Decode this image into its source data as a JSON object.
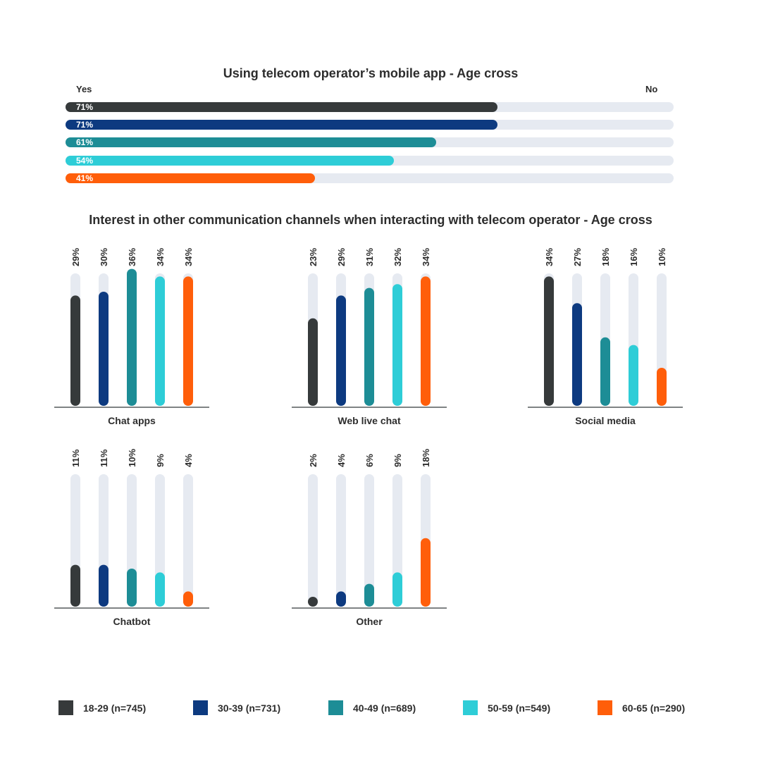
{
  "colors": [
    "#363a3b",
    "#0d3a80",
    "#1d8d96",
    "#2ecdd7",
    "#ff5e0a"
  ],
  "track_color": "#e6eaf1",
  "chart_data": [
    {
      "type": "bar",
      "orientation": "horizontal",
      "title": "Using telecom operator’s mobile app - Age cross",
      "left_label": "Yes",
      "right_label": "No",
      "categories": [
        "18-29 (n=745)",
        "30-39 (n=731)",
        "40-49 (n=689)",
        "50-59 (n=549)",
        "60-65 (n=290)"
      ],
      "values": [
        71,
        71,
        61,
        54,
        41
      ],
      "labels": [
        "71%",
        "71%",
        "61%",
        "54%",
        "41%"
      ],
      "xlim": [
        0,
        100
      ]
    },
    {
      "type": "bar",
      "title": "Interest in other communication channels when interacting with telecom operator - Age cross",
      "ylim": [
        0,
        100
      ],
      "series": [
        {
          "name": "18-29 (n=745)",
          "values": [
            29,
            23,
            34,
            11,
            2
          ]
        },
        {
          "name": "30-39 (n=731)",
          "values": [
            30,
            29,
            27,
            11,
            4
          ]
        },
        {
          "name": "40-49 (n=689)",
          "values": [
            36,
            31,
            18,
            10,
            6
          ]
        },
        {
          "name": "50-59 (n=549)",
          "values": [
            34,
            32,
            16,
            9,
            9
          ]
        },
        {
          "name": "60-65 (n=290)",
          "values": [
            34,
            34,
            10,
            4,
            18
          ]
        }
      ],
      "groups": [
        {
          "name": "Chat apps",
          "values": [
            29,
            30,
            36,
            34,
            34
          ],
          "labels": [
            "29%",
            "30%",
            "36%",
            "34%",
            "34%"
          ]
        },
        {
          "name": "Web live chat",
          "values": [
            23,
            29,
            31,
            32,
            34
          ],
          "labels": [
            "23%",
            "29%",
            "31%",
            "32%",
            "34%"
          ]
        },
        {
          "name": "Social media",
          "values": [
            34,
            27,
            18,
            16,
            10
          ],
          "labels": [
            "34%",
            "27%",
            "18%",
            "16%",
            "10%"
          ]
        },
        {
          "name": "Chatbot",
          "values": [
            11,
            11,
            10,
            9,
            4
          ],
          "labels": [
            "11%",
            "11%",
            "10%",
            "9%",
            "4%"
          ]
        },
        {
          "name": "Other",
          "values": [
            2,
            4,
            6,
            9,
            18
          ],
          "labels": [
            "2%",
            "4%",
            "6%",
            "9%",
            "18%"
          ]
        }
      ]
    }
  ],
  "legend": [
    "18-29 (n=745)",
    "30-39 (n=731)",
    "40-49 (n=689)",
    "50-59 (n=549)",
    "60-65 (n=290)"
  ]
}
